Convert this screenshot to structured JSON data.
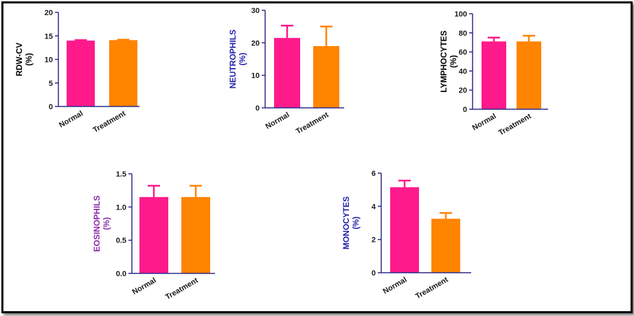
{
  "chart_data": [
    {
      "type": "bar",
      "ylabel": "RDW-CV",
      "unit": "(%)",
      "label_color": "#000000",
      "categories": [
        "Normal",
        "Treatment"
      ],
      "values": [
        14.0,
        14.1
      ],
      "errors": [
        0.1,
        0.1
      ],
      "colors": [
        "#ff1a8c",
        "#ff8400"
      ],
      "ylim": [
        0,
        20
      ],
      "yticks": [
        0,
        5,
        10,
        15,
        20
      ],
      "tick_labels": [
        "0",
        "5",
        "10",
        "15",
        "20"
      ]
    },
    {
      "type": "bar",
      "ylabel": "NEUTROPHILS",
      "unit": "(%)",
      "label_color": "#2222aa",
      "categories": [
        "Normal",
        "Treatment"
      ],
      "values": [
        21.5,
        19.0
      ],
      "errors": [
        3.8,
        6.0
      ],
      "colors": [
        "#ff1a8c",
        "#ff8400"
      ],
      "ylim": [
        0,
        30
      ],
      "yticks": [
        0,
        10,
        20,
        30
      ],
      "tick_labels": [
        "0",
        "10",
        "20",
        "30"
      ]
    },
    {
      "type": "bar",
      "ylabel": "LYMPHOCYTES",
      "unit": "(%)",
      "label_color": "#000000",
      "categories": [
        "Normal",
        "Treatment"
      ],
      "values": [
        71.0,
        71.0
      ],
      "errors": [
        4.0,
        6.0
      ],
      "colors": [
        "#ff1a8c",
        "#ff8400"
      ],
      "ylim": [
        0,
        100
      ],
      "yticks": [
        0,
        20,
        40,
        60,
        80,
        100
      ],
      "tick_labels": [
        "0",
        "20",
        "40",
        "60",
        "80",
        "100"
      ]
    },
    {
      "type": "bar",
      "ylabel": "EOSINOPHILS",
      "unit": "(%)",
      "label_color": "#8a2aa8",
      "categories": [
        "Normal",
        "Treatment"
      ],
      "values": [
        1.15,
        1.15
      ],
      "errors": [
        0.17,
        0.17
      ],
      "colors": [
        "#ff1a8c",
        "#ff8400"
      ],
      "ylim": [
        0,
        1.5
      ],
      "yticks": [
        0,
        0.5,
        1.0,
        1.5
      ],
      "tick_labels": [
        "0.0",
        "0.5",
        "1.0",
        "1.5"
      ]
    },
    {
      "type": "bar",
      "ylabel": "MONOCYTES",
      "unit": "(%)",
      "label_color": "#2222aa",
      "categories": [
        "Normal",
        "Treatment"
      ],
      "values": [
        5.15,
        3.25
      ],
      "errors": [
        0.4,
        0.35
      ],
      "colors": [
        "#ff1a8c",
        "#ff8400"
      ],
      "ylim": [
        0,
        6
      ],
      "yticks": [
        0,
        2,
        4,
        6
      ],
      "tick_labels": [
        "0",
        "2",
        "4",
        "6"
      ]
    }
  ]
}
